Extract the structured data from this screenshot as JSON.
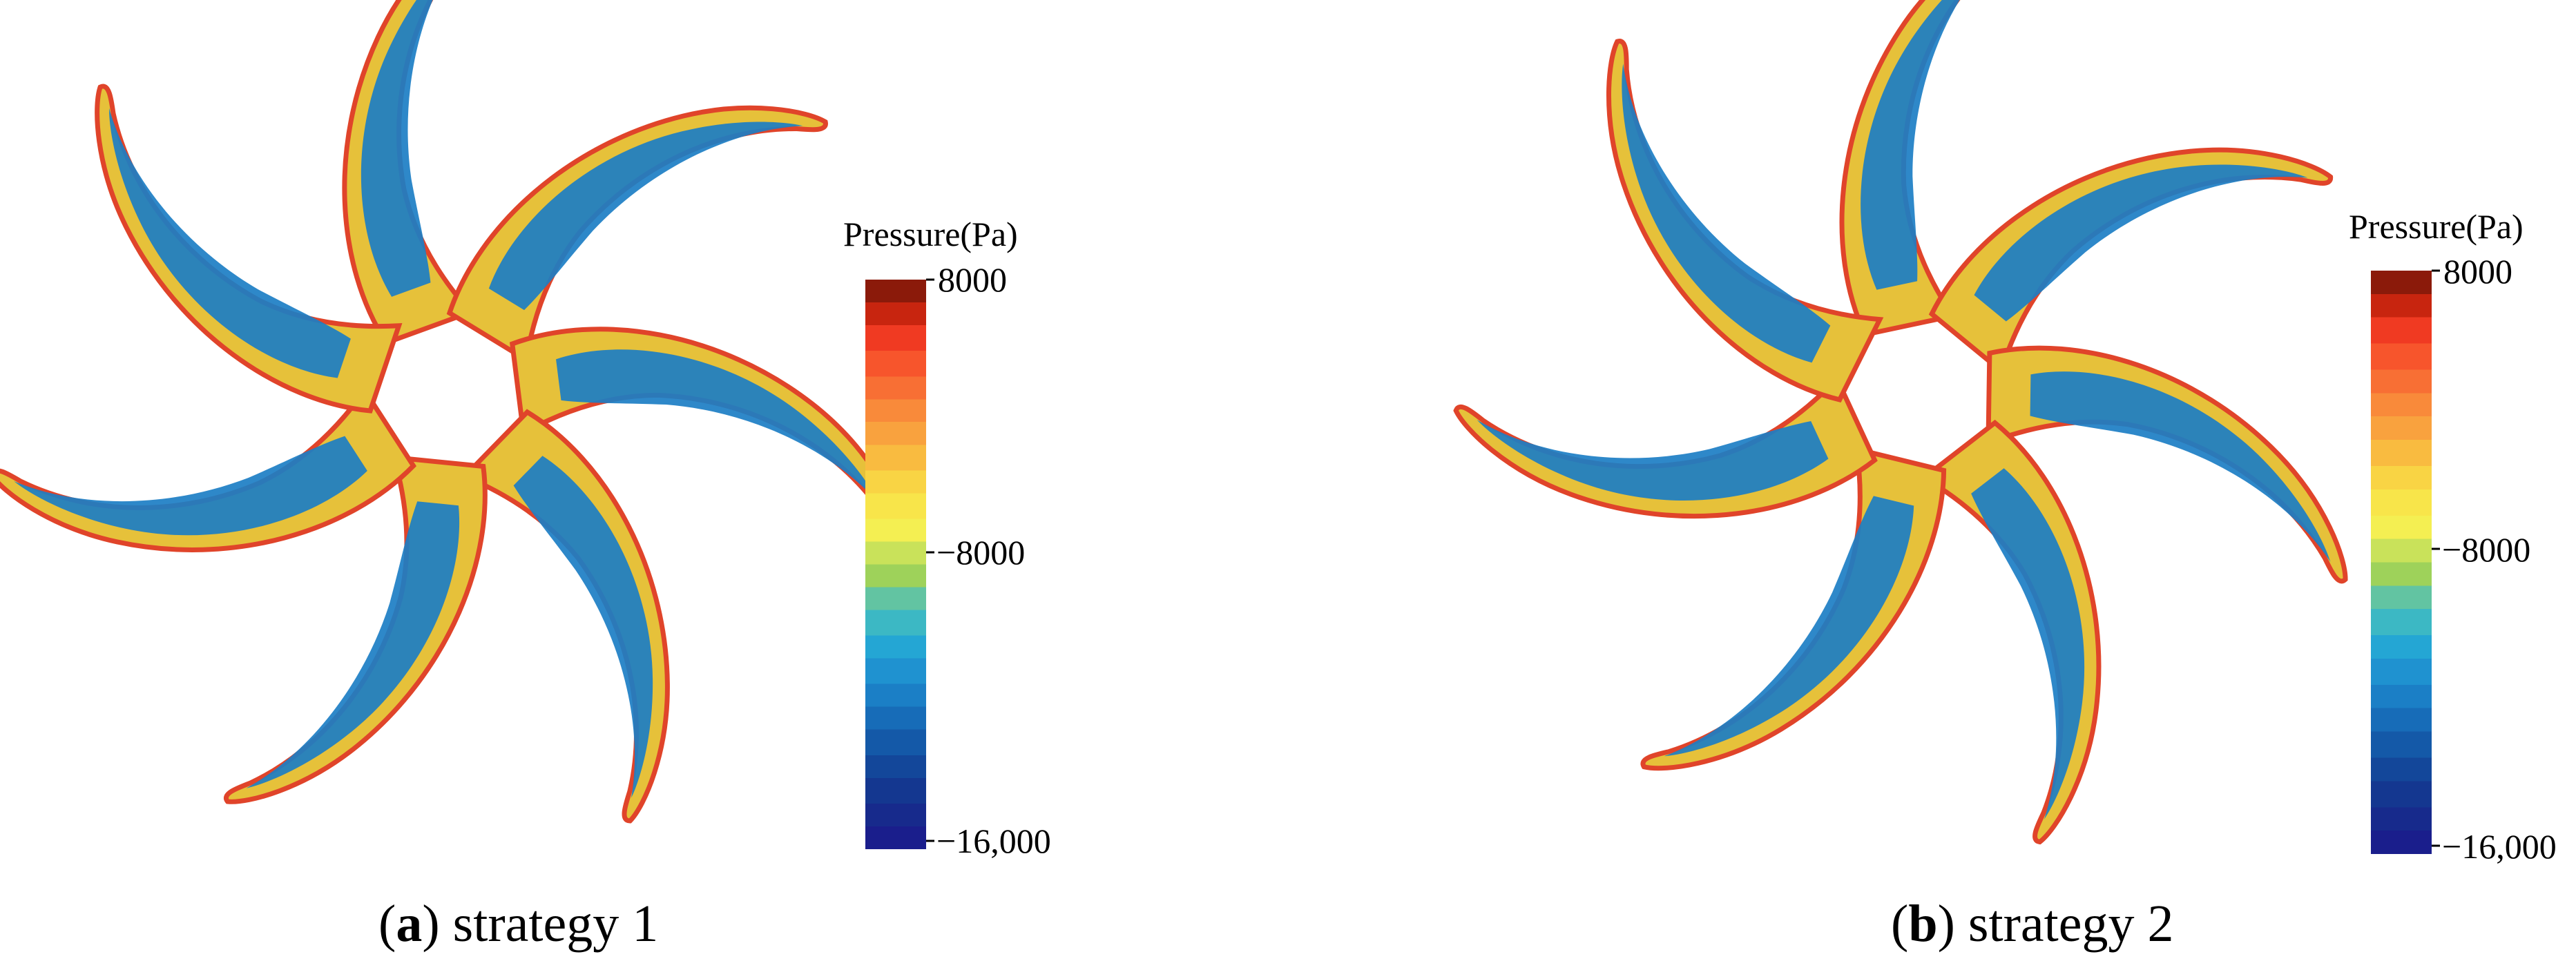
{
  "panels": [
    {
      "letter": "a",
      "caption_text": " strategy 1",
      "colorbar": {
        "title": "Pressure(Pa)",
        "ticks": [
          {
            "label": "8000",
            "value": 8000
          },
          {
            "label": "−8000",
            "value": -8000
          },
          {
            "label": "−16,000",
            "value": -16000
          }
        ]
      }
    },
    {
      "letter": "b",
      "caption_text": " strategy 2",
      "colorbar": {
        "title": "Pressure(Pa)",
        "ticks": [
          {
            "label": "8000",
            "value": 8000
          },
          {
            "label": "−8000",
            "value": -8000
          },
          {
            "label": "−16,000",
            "value": -16000
          }
        ]
      }
    }
  ],
  "colorbar_range": [
    -16000,
    8000
  ],
  "colors": {
    "high": "#8b1a0a",
    "mid_high": "#f7e23a",
    "mid": "#9ed25a",
    "low_mid": "#1f9fd6",
    "low": "#1a1e8c",
    "blade_edge": "#e0442a",
    "blade_body": "#e6c13a",
    "blade_core": "#1c7ec4"
  },
  "blade_count": 7
}
